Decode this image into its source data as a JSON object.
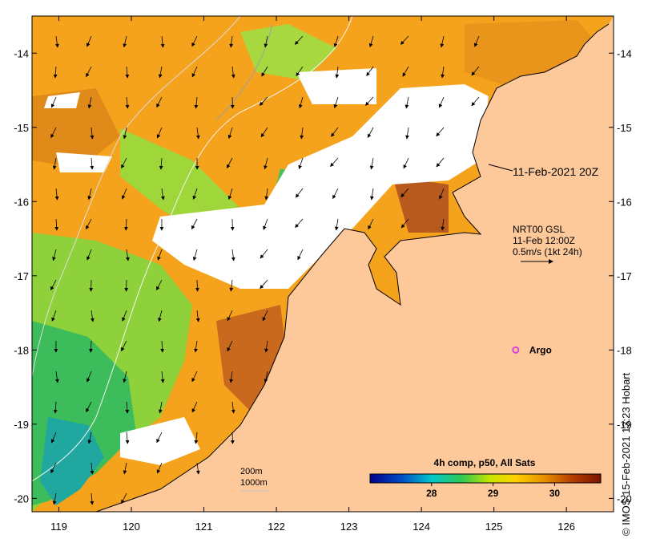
{
  "map": {
    "axes": {
      "x_ticks": [
        "119",
        "120",
        "121",
        "122",
        "123",
        "124",
        "125",
        "126"
      ],
      "y_ticks": [
        "-14",
        "-15",
        "-16",
        "-17",
        "-18",
        "-19",
        "-20"
      ]
    },
    "timestamp_label": "11-Feb-2021 20Z",
    "current_vector_legend": {
      "line1": "NRT00 GSL",
      "line2": "11-Feb 12:00Z",
      "line3": "0.5m/s (1kt 24h)"
    },
    "argo": {
      "label": "Argo",
      "marker_color": "#e040e0",
      "lon": 125.3,
      "lat": -18.0
    },
    "isobaths": {
      "line1": "200m",
      "line2": "1000m"
    },
    "colorbar": {
      "title": "4h comp, p50, All Sats",
      "ticks": [
        "28",
        "29",
        "30"
      ],
      "stops": [
        "#00008c",
        "#0050c8",
        "#00c8c8",
        "#32c850",
        "#c8e600",
        "#ffd200",
        "#e68c00",
        "#b43c00",
        "#7a1400"
      ]
    },
    "credit": "© IMOS 15-Feb-2021 13:23 Hobart",
    "colors": {
      "land": "#fdc89a",
      "cloud": "#ffffff",
      "warm": "#f5a21c",
      "cool": "#3cbc5a"
    }
  }
}
